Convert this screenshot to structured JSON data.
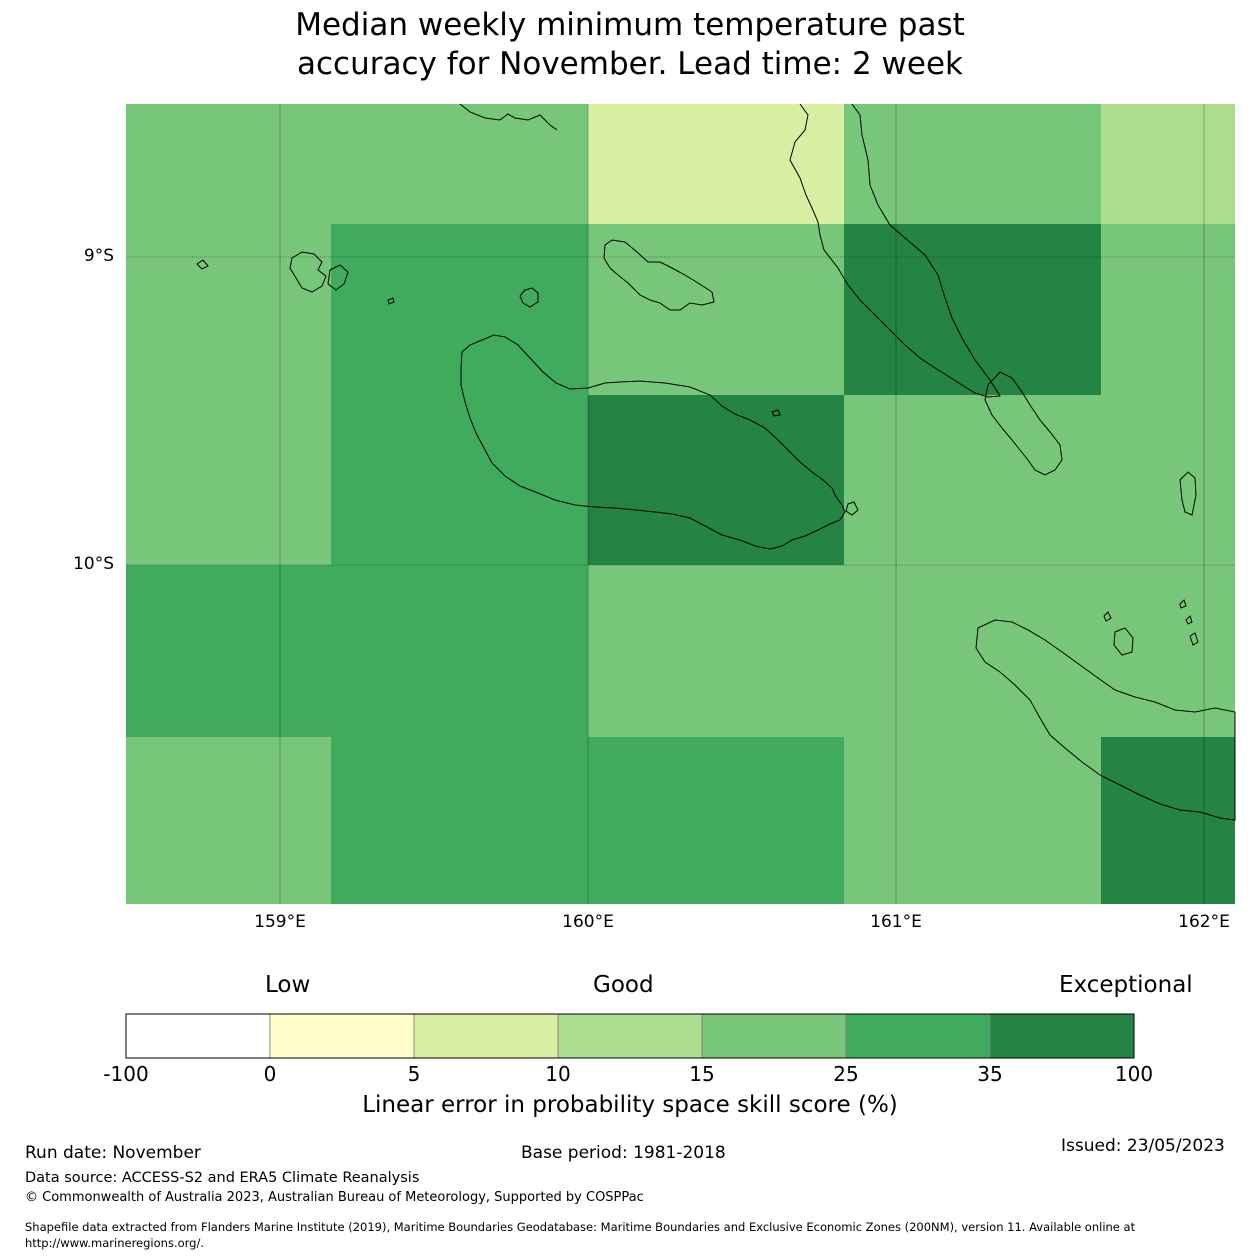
{
  "title": {
    "line1": "Median weekly minimum temperature past",
    "line2": "accuracy for November. Lead time: 2 week"
  },
  "map": {
    "lat_labels": [
      "9°S",
      "10°S"
    ],
    "lon_labels": [
      "159°E",
      "160°E",
      "161°E",
      "162°E"
    ],
    "extent": {
      "lon_min": 158.5,
      "lon_max": 162.1,
      "lat_max": -8.5,
      "lat_min": -11.1
    },
    "grid_cell_deg": 0.833,
    "cells": [
      {
        "row": 0,
        "col": 0,
        "category": "15-25"
      },
      {
        "row": 0,
        "col": 1,
        "category": "15-25"
      },
      {
        "row": 0,
        "col": 2,
        "category": "5-10"
      },
      {
        "row": 0,
        "col": 3,
        "category": "15-25"
      },
      {
        "row": 0,
        "col": 4,
        "category": "10-15"
      },
      {
        "row": 1,
        "col": 0,
        "category": "15-25"
      },
      {
        "row": 1,
        "col": 1,
        "category": "25-35"
      },
      {
        "row": 1,
        "col": 2,
        "category": "15-25"
      },
      {
        "row": 1,
        "col": 3,
        "category": "35-100"
      },
      {
        "row": 1,
        "col": 4,
        "category": "15-25"
      },
      {
        "row": 2,
        "col": 0,
        "category": "15-25"
      },
      {
        "row": 2,
        "col": 1,
        "category": "25-35"
      },
      {
        "row": 2,
        "col": 2,
        "category": "35-100"
      },
      {
        "row": 2,
        "col": 3,
        "category": "15-25"
      },
      {
        "row": 2,
        "col": 4,
        "category": "15-25"
      },
      {
        "row": 3,
        "col": 0,
        "category": "25-35"
      },
      {
        "row": 3,
        "col": 1,
        "category": "25-35"
      },
      {
        "row": 3,
        "col": 2,
        "category": "15-25"
      },
      {
        "row": 3,
        "col": 3,
        "category": "15-25"
      },
      {
        "row": 3,
        "col": 4,
        "category": "15-25"
      },
      {
        "row": 4,
        "col": 0,
        "category": "15-25"
      },
      {
        "row": 4,
        "col": 1,
        "category": "25-35"
      },
      {
        "row": 4,
        "col": 2,
        "category": "25-35"
      },
      {
        "row": 4,
        "col": 3,
        "category": "15-25"
      },
      {
        "row": 4,
        "col": 4,
        "category": "35-100"
      }
    ]
  },
  "colorbar": {
    "categories": {
      "low": "Low",
      "good": "Good",
      "exceptional": "Exceptional"
    },
    "bins": [
      {
        "from": "-100",
        "to": "0",
        "color": "#ffffff"
      },
      {
        "from": "0",
        "to": "5",
        "color": "#ffffcc"
      },
      {
        "from": "5",
        "to": "10",
        "color": "#d9f0a3"
      },
      {
        "from": "10",
        "to": "15",
        "color": "#addd8e"
      },
      {
        "from": "15",
        "to": "25",
        "color": "#78c679"
      },
      {
        "from": "25",
        "to": "35",
        "color": "#41ab5d"
      },
      {
        "from": "35",
        "to": "100",
        "color": "#238443"
      }
    ],
    "ticks": [
      "-100",
      "0",
      "5",
      "10",
      "15",
      "25",
      "35",
      "100"
    ],
    "label": "Linear error in probability space skill score (%)"
  },
  "footer": {
    "run_date": "Run date: November",
    "base_period": "Base period: 1981-2018",
    "issued": "Issued: 23/05/2023",
    "data_source": "Data source: ACCESS-S2 and ERA5 Climate Reanalysis",
    "copyright": "© Commonwealth of Australia 2023, Australian Bureau of Meteorology, Supported by COSPPac",
    "shapefile_line1": "Shapefile data extracted from Flanders Marine Institute (2019), Maritime Boundaries Geodatabase: Maritime Boundaries and Exclusive Economic Zones (200NM), version 11. Available online at",
    "shapefile_line2": "http://www.marineregions.org/."
  }
}
